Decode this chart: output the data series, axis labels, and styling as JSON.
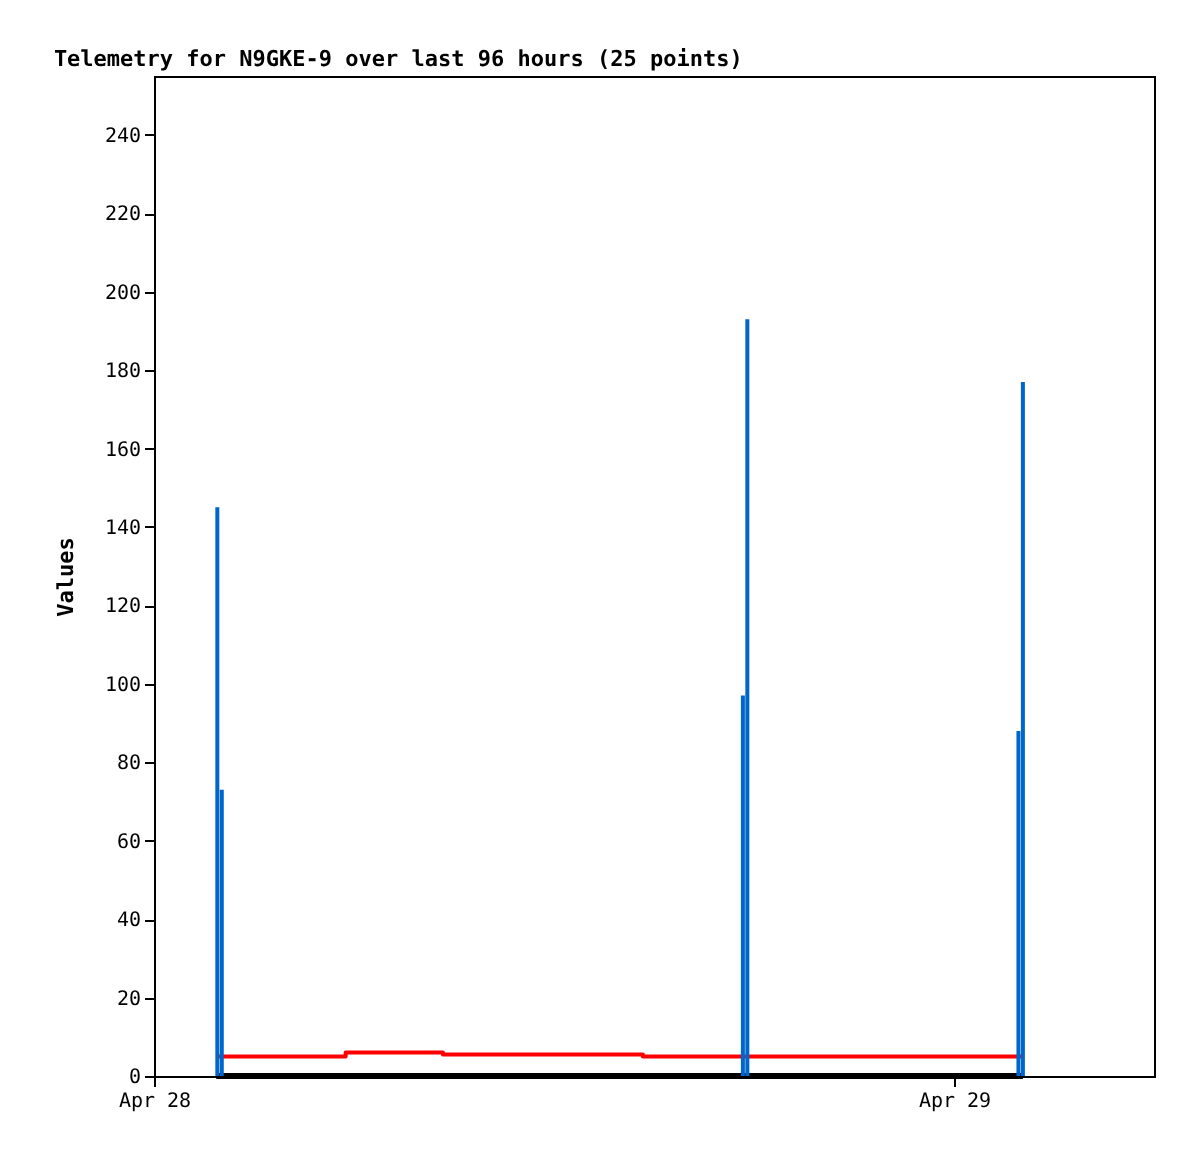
{
  "chart_data": {
    "type": "line",
    "title": "Telemetry for N9GKE-9 over last 96 hours (25 points)",
    "ylabel": "Values",
    "xlim": [
      "--04-28",
      "--04-29T06:00"
    ],
    "xticks": [
      {
        "value": "--04-28",
        "label": "Apr 28"
      },
      {
        "value": "--04-29",
        "label": "Apr 29"
      }
    ],
    "ylim": [
      0,
      255
    ],
    "yticks": [
      0,
      20,
      40,
      60,
      80,
      100,
      120,
      140,
      160,
      180,
      200,
      220,
      240
    ],
    "grid": false,
    "series": [
      {
        "color": "#000000",
        "x": [
          "--04-28T01:52",
          "--04-29T02:04"
        ],
        "values": [
          0,
          0
        ]
      },
      {
        "type": "step",
        "color": "#ff0000",
        "x": [
          "--04-28T01:52",
          "--04-28T05:45",
          "--04-28T08:40",
          "--04-28T14:40",
          "--04-29T02:04"
        ],
        "values": [
          5,
          6,
          5.5,
          5,
          5
        ]
      },
      {
        "type": "bar",
        "color": "#0066cc",
        "x": [
          "--04-28T01:54",
          "--04-28T02:02",
          "--04-28T17:40",
          "--04-28T17:48",
          "--04-29T01:56",
          "--04-29T02:04"
        ],
        "values": [
          145,
          73,
          97,
          193,
          88,
          177
        ]
      }
    ]
  }
}
